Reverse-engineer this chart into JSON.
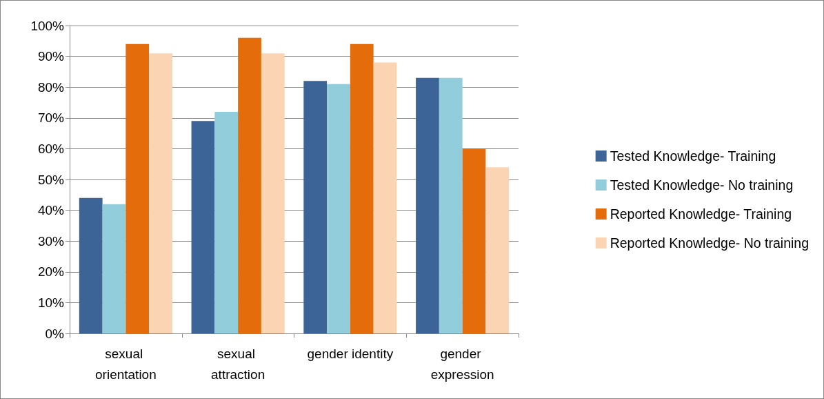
{
  "chart_data": {
    "type": "bar",
    "categories": [
      "sexual orientation",
      "sexual attraction",
      "gender identity",
      "gender expression"
    ],
    "series": [
      {
        "name": "Tested Knowledge- Training",
        "color": "#3d6496",
        "values": [
          44,
          69,
          82,
          83
        ]
      },
      {
        "name": "Tested Knowledge- No training",
        "color": "#92cddc",
        "values": [
          42,
          72,
          81,
          83
        ]
      },
      {
        "name": "Reported Knowledge- Training",
        "color": "#e46c0a",
        "values": [
          94,
          96,
          94,
          60
        ]
      },
      {
        "name": "Reported Knowledge- No training",
        "color": "#fbd4b4",
        "values": [
          91,
          91,
          88,
          54
        ]
      }
    ],
    "ylim": [
      0,
      100
    ],
    "yticks": [
      {
        "value": 0,
        "label": "0%"
      },
      {
        "value": 10,
        "label": "10%"
      },
      {
        "value": 20,
        "label": "20%"
      },
      {
        "value": 30,
        "label": "30%"
      },
      {
        "value": 40,
        "label": "40%"
      },
      {
        "value": 50,
        "label": "50%"
      },
      {
        "value": 60,
        "label": "60%"
      },
      {
        "value": 70,
        "label": "70%"
      },
      {
        "value": 80,
        "label": "80%"
      },
      {
        "value": 90,
        "label": "90%"
      },
      {
        "value": 100,
        "label": "100%"
      }
    ],
    "grid": "y",
    "legend": "right"
  }
}
